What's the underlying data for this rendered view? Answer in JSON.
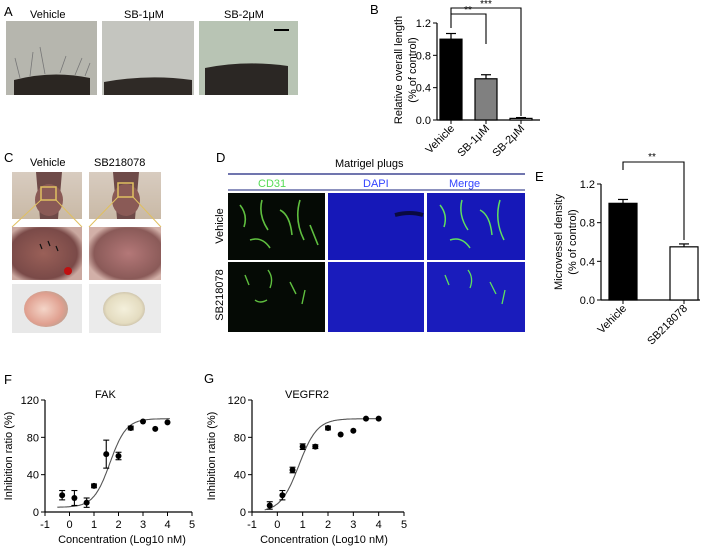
{
  "panels": {
    "A": {
      "letter": "A",
      "labels": [
        "Vehicle",
        "SB-1μM",
        "SB-2μM"
      ]
    },
    "B": {
      "letter": "B",
      "ylabel_lines": [
        "Relative overall length",
        "(% of control)"
      ],
      "yticks": [
        "0.0",
        "0.4",
        "0.8",
        "1.2"
      ],
      "categories": [
        "Vehicle",
        "SB-1μM",
        "SB-2μM"
      ],
      "sig": [
        "**",
        "***"
      ]
    },
    "C": {
      "letter": "C",
      "labels": [
        "Vehicle",
        "SB218078"
      ]
    },
    "D": {
      "letter": "D",
      "title": "Matrigel plugs",
      "channels": [
        "CD31",
        "DAPI",
        "Merge"
      ],
      "rows": [
        "Vehicle",
        "SB218078"
      ]
    },
    "E": {
      "letter": "E",
      "ylabel_lines": [
        "Microvessel density",
        "(% of control)"
      ],
      "yticks": [
        "0.0",
        "0.4",
        "0.8",
        "1.2"
      ],
      "categories": [
        "Vehicle",
        "SB218078"
      ],
      "sig": "**"
    },
    "F": {
      "letter": "F",
      "title": "FAK",
      "ylabel": "Inhibition ratio (%)",
      "xlabel": "Concentration (Log10 nM)",
      "yticks": [
        "0",
        "40",
        "80",
        "120"
      ],
      "xticks": [
        "-1",
        "0",
        "1",
        "2",
        "3",
        "4",
        "5"
      ]
    },
    "G": {
      "letter": "G",
      "title": "VEGFR2",
      "ylabel": "Inhibition ratio (%)",
      "xlabel": "Concentration (Log10 nM)",
      "yticks": [
        "0",
        "40",
        "80",
        "120"
      ],
      "xticks": [
        "-1",
        "0",
        "1",
        "2",
        "3",
        "4",
        "5"
      ]
    }
  },
  "colors": {
    "bar_black": "#000000",
    "bar_gray": "#808080",
    "bar_white": "#ffffff",
    "cd31_text": "#55dd55",
    "dapi_text": "#3344ff",
    "navy_line": "#1a237e",
    "plug_yellow": "#e0c060"
  },
  "chart_data": [
    {
      "type": "bar",
      "panel": "B",
      "categories": [
        "Vehicle",
        "SB-1μM",
        "SB-2μM"
      ],
      "values": [
        1.0,
        0.51,
        0.02
      ],
      "errors": [
        0.07,
        0.05,
        0.01
      ],
      "ylabel": "Relative overall length (% of control)",
      "ylim": [
        0,
        1.2
      ],
      "significance": [
        {
          "from": 0,
          "to": 1,
          "label": "**"
        },
        {
          "from": 0,
          "to": 2,
          "label": "***"
        }
      ]
    },
    {
      "type": "bar",
      "panel": "E",
      "categories": [
        "Vehicle",
        "SB218078"
      ],
      "values": [
        1.0,
        0.55
      ],
      "errors": [
        0.04,
        0.03
      ],
      "ylabel": "Microvessel density (% of control)",
      "ylim": [
        0,
        1.2
      ],
      "significance": [
        {
          "from": 0,
          "to": 1,
          "label": "**"
        }
      ]
    },
    {
      "type": "scatter",
      "panel": "F",
      "title": "FAK",
      "xlabel": "Concentration (Log10 nM)",
      "ylabel": "Inhibition ratio (%)",
      "xlim": [
        -1,
        5
      ],
      "ylim": [
        0,
        120
      ],
      "points": [
        {
          "x": -0.3,
          "y": 18,
          "err": 5
        },
        {
          "x": 0.2,
          "y": 15,
          "err": 8
        },
        {
          "x": 0.7,
          "y": 10,
          "err": 5
        },
        {
          "x": 1.0,
          "y": 28,
          "err": 2
        },
        {
          "x": 1.5,
          "y": 62,
          "err": 15
        },
        {
          "x": 2.0,
          "y": 60,
          "err": 4
        },
        {
          "x": 2.5,
          "y": 90,
          "err": 2
        },
        {
          "x": 3.0,
          "y": 97,
          "err": 0
        },
        {
          "x": 3.5,
          "y": 89,
          "err": 0
        },
        {
          "x": 4.0,
          "y": 96,
          "err": 0
        }
      ],
      "fit_curve": {
        "bottom": 5,
        "top": 100,
        "logIC50": 1.65,
        "hill": 1.3
      }
    },
    {
      "type": "scatter",
      "panel": "G",
      "title": "VEGFR2",
      "xlabel": "Concentration (Log10 nM)",
      "ylabel": "Inhibition ratio (%)",
      "xlim": [
        -1,
        5
      ],
      "ylim": [
        0,
        120
      ],
      "points": [
        {
          "x": -0.3,
          "y": 7,
          "err": 4
        },
        {
          "x": 0.2,
          "y": 18,
          "err": 5
        },
        {
          "x": 0.6,
          "y": 45,
          "err": 3
        },
        {
          "x": 1.0,
          "y": 70,
          "err": 3
        },
        {
          "x": 1.5,
          "y": 70,
          "err": 2
        },
        {
          "x": 2.0,
          "y": 90,
          "err": 2
        },
        {
          "x": 2.5,
          "y": 83,
          "err": 0
        },
        {
          "x": 3.0,
          "y": 87,
          "err": 0
        },
        {
          "x": 3.5,
          "y": 100,
          "err": 0
        },
        {
          "x": 4.0,
          "y": 100,
          "err": 0
        }
      ],
      "fit_curve": {
        "bottom": 0,
        "top": 100,
        "logIC50": 0.85,
        "hill": 1.2
      }
    }
  ]
}
